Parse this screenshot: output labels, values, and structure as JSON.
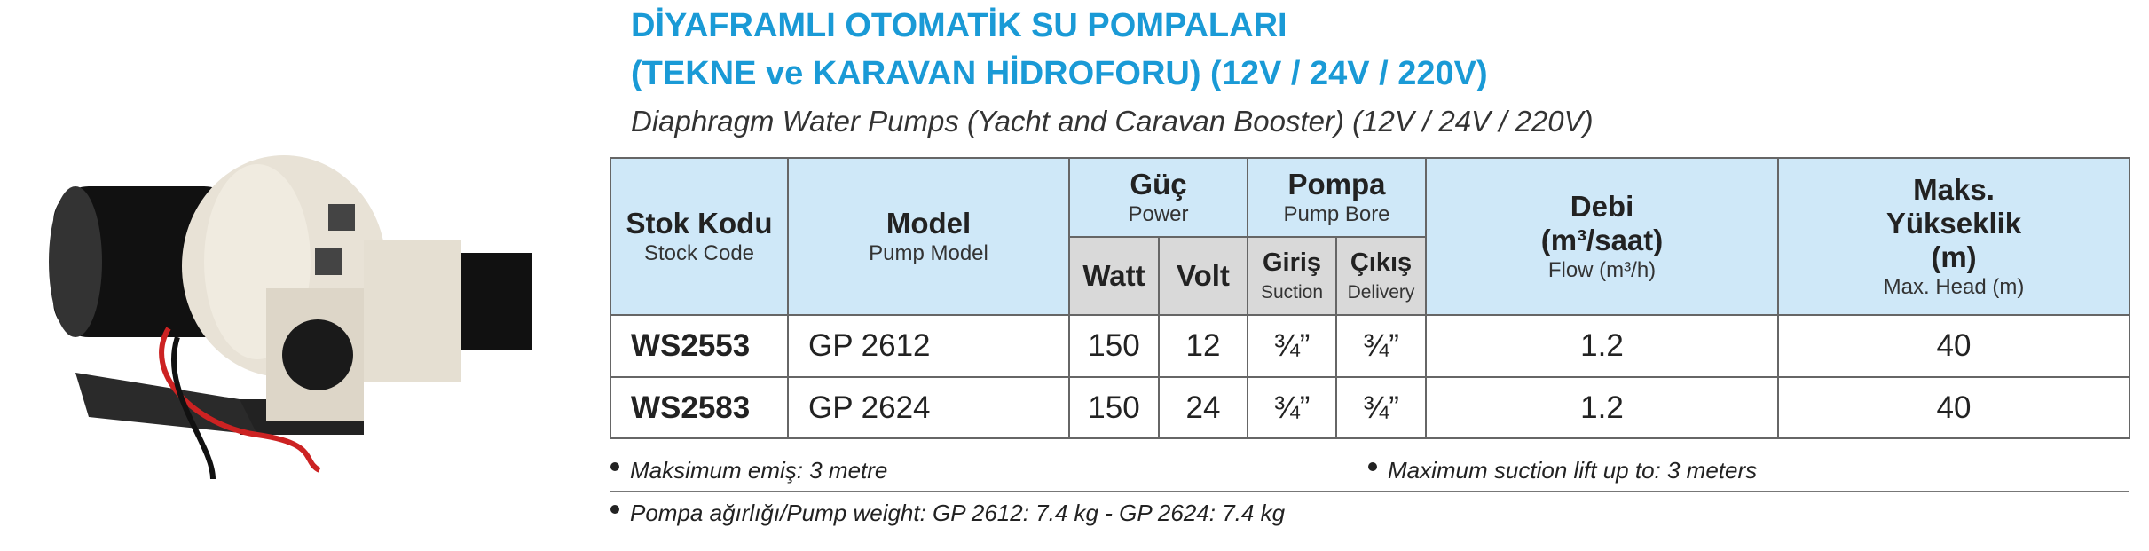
{
  "title": [
    "DİYAFRAMLI OTOMATİK SU POMPALARI",
    "(TEKNE ve KARAVAN HİDROFORU) (12V / 24V / 220V)"
  ],
  "subtitle": "Diaphragm Water Pumps (Yacht and Caravan Booster) (12V / 24V / 220V)",
  "table": {
    "header": {
      "stock_code": [
        "Stok Kodu",
        "Stock Code"
      ],
      "model": [
        "Model",
        "Pump Model"
      ],
      "power": [
        "Güç",
        "Power"
      ],
      "pump": [
        "Pompa",
        "Pump Bore"
      ],
      "watt": "Watt",
      "volt": "Volt",
      "inlet": [
        "Giriş",
        "Suction"
      ],
      "outlet": [
        "Çıkış",
        "Delivery"
      ],
      "flow": [
        "Debi",
        "(m³/saat)",
        "Flow (m³/h)"
      ],
      "head": [
        "Maks.",
        "Yükseklik",
        "(m)",
        "Max. Head (m)"
      ]
    },
    "rows": [
      [
        "WS2553",
        "GP 2612",
        "150",
        "12",
        "¾”",
        "¾”",
        "1.2",
        "40"
      ],
      [
        "WS2583",
        "GP 2624",
        "150",
        "24",
        "¾”",
        "¾”",
        "1.2",
        "40"
      ]
    ]
  },
  "notes": [
    "Maksimum emiş: 3 metre",
    "Maximum suction lift up to: 3 meters",
    "Pompa ağırlığı/Pump weight: GP 2612: 7.4 kg - GP 2624: 7.4 kg"
  ]
}
